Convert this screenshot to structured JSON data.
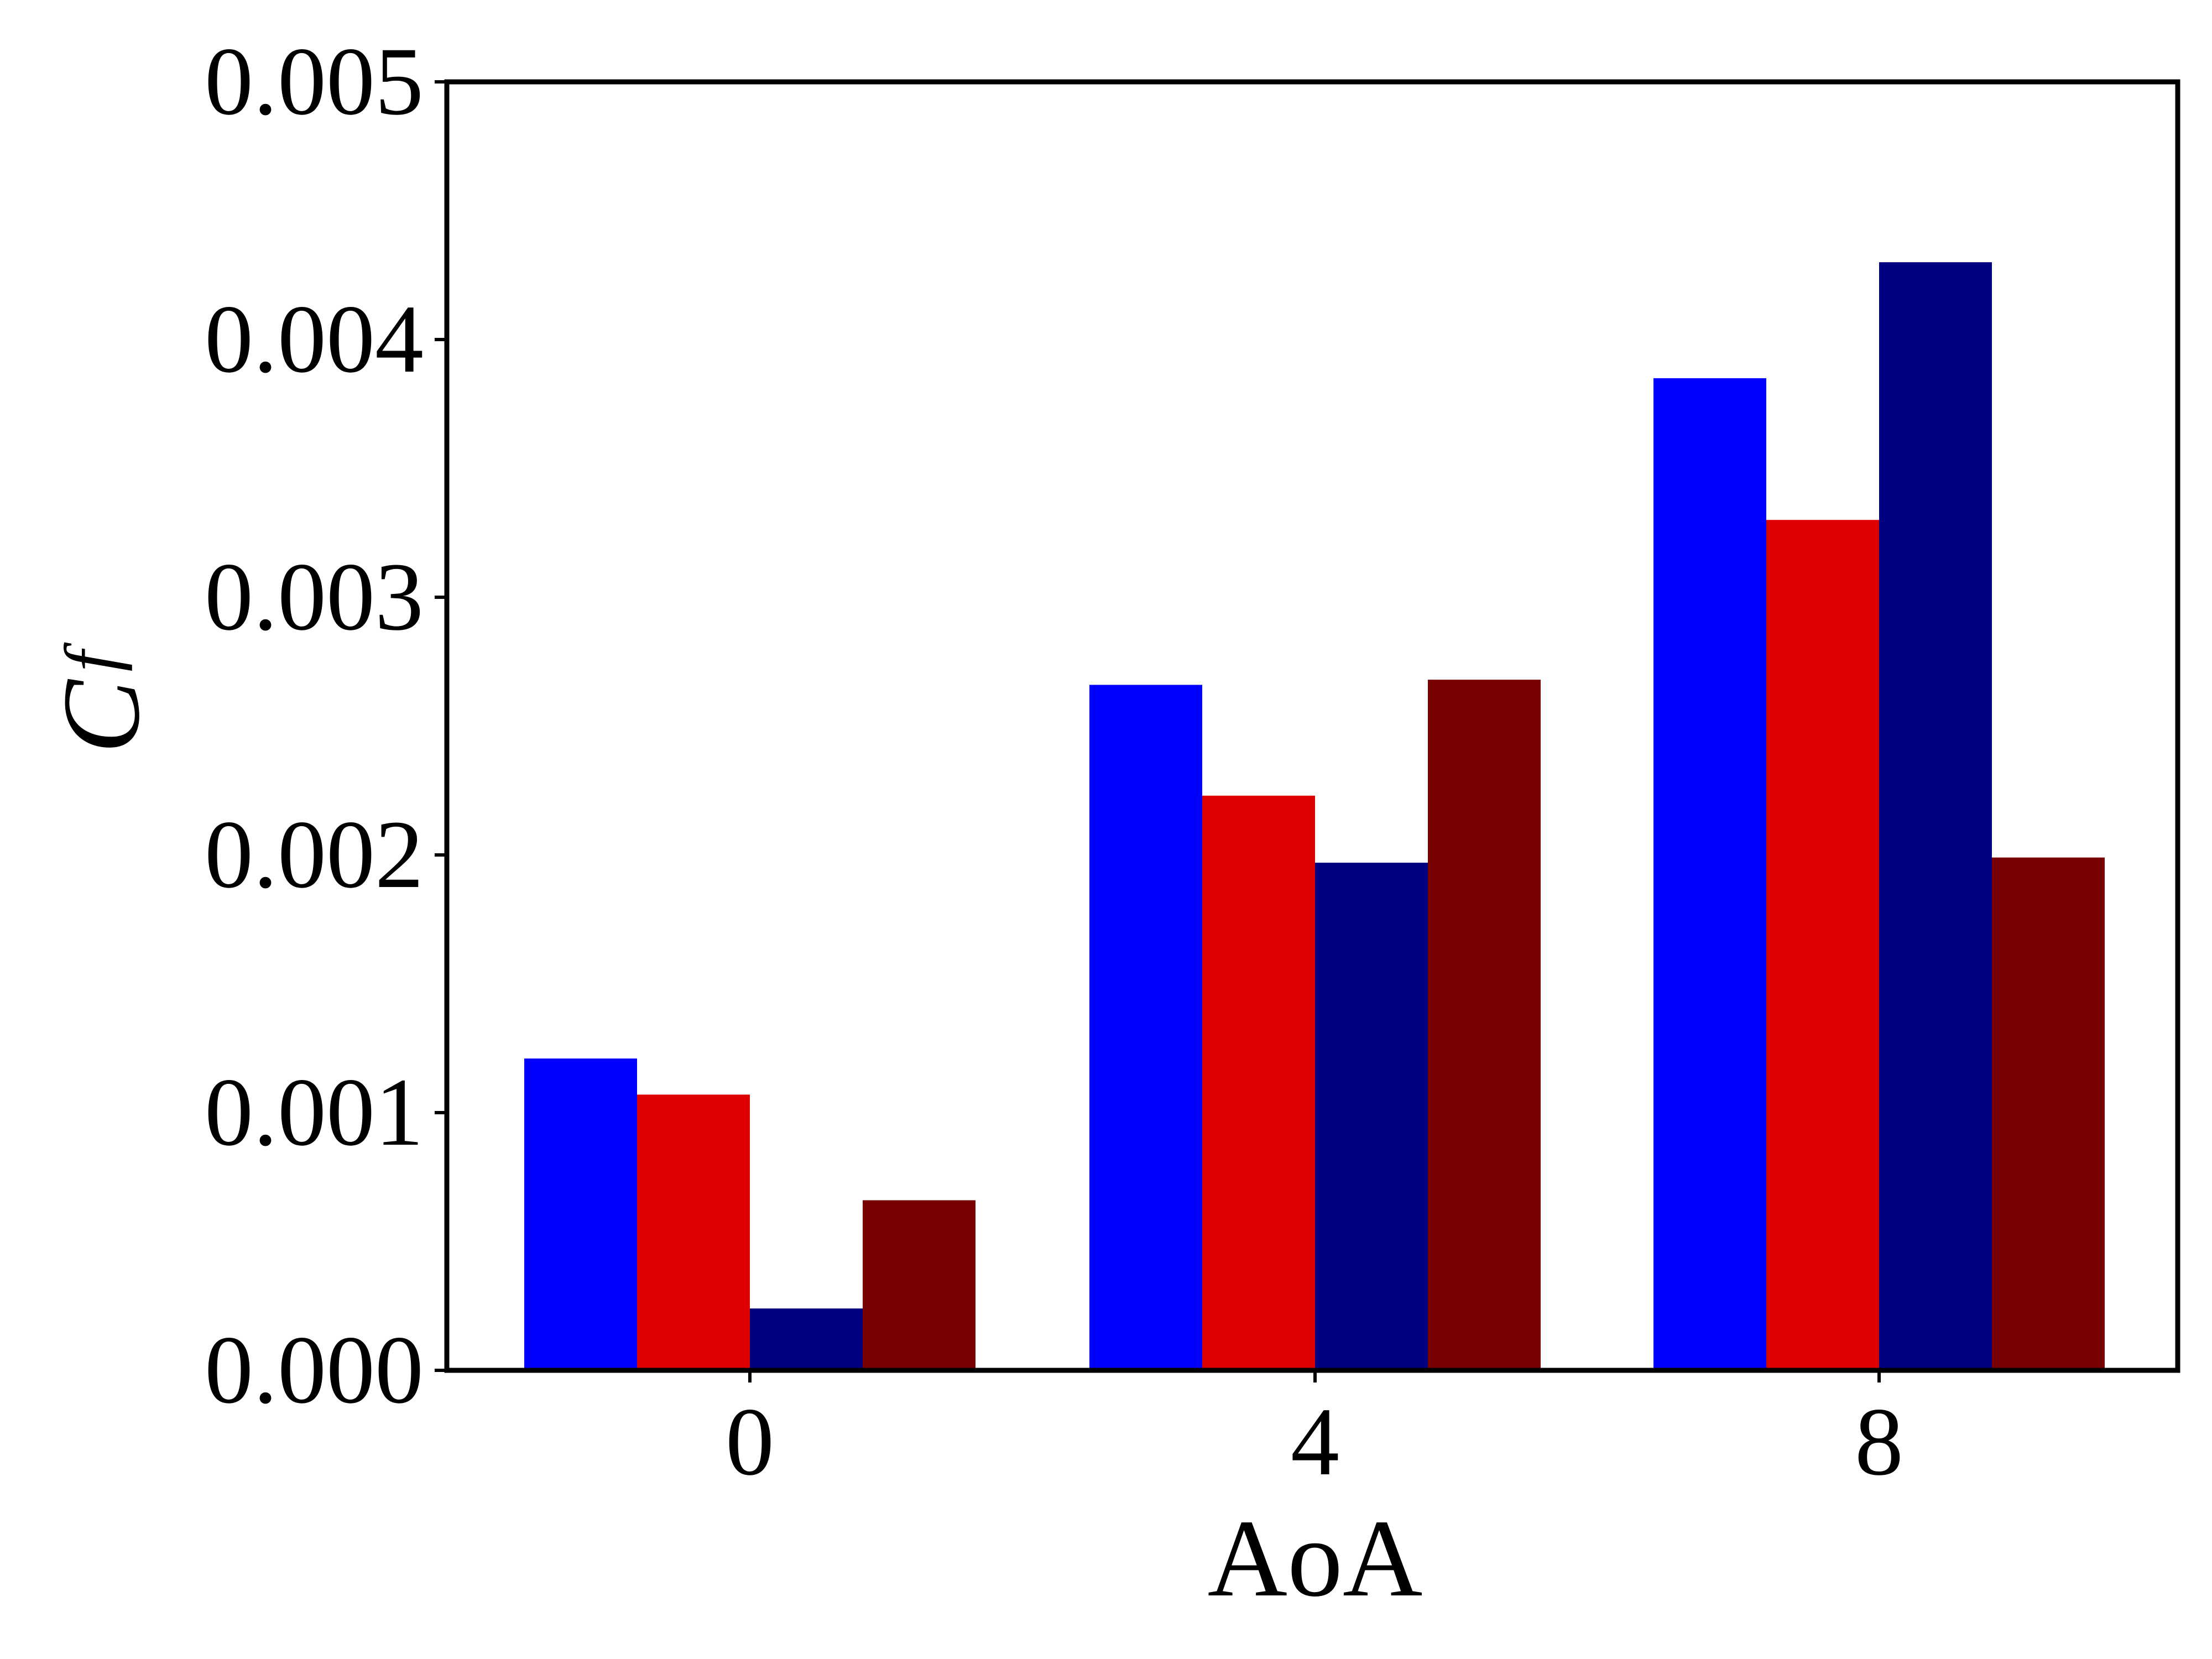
{
  "chart_data": {
    "type": "bar",
    "title": "",
    "xlabel": "AoA",
    "ylabel": "C",
    "ylabel_subscript": "f",
    "categories": [
      "0",
      "4",
      "8"
    ],
    "ylim": [
      0,
      0.005
    ],
    "yticks": [
      "0.000",
      "0.001",
      "0.002",
      "0.003",
      "0.004",
      "0.005"
    ],
    "grid": false,
    "legend": "none",
    "series": [
      {
        "values": [
          0.00121,
          0.00266,
          0.00385
        ],
        "color": "#0000ff"
      },
      {
        "values": [
          0.00107,
          0.00223,
          0.0033
        ],
        "color": "#dd0000"
      },
      {
        "values": [
          0.00024,
          0.00197,
          0.0043
        ],
        "color": "#000080"
      },
      {
        "values": [
          0.00066,
          0.00268,
          0.00199
        ],
        "color": "#770000"
      }
    ]
  }
}
